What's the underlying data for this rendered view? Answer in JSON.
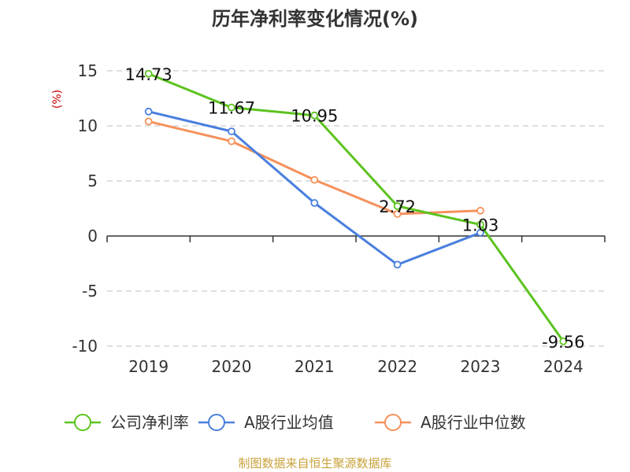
{
  "colors": {
    "series": [
      "#5cc31f",
      "#4a7fde",
      "#f5915b"
    ],
    "grid": "#cccccc",
    "axis": "#333333",
    "unit": "#cc0000",
    "source": "#c8a23a"
  },
  "chart_data": {
    "type": "line",
    "title": "历年净利率变化情况(%)",
    "ylabel": "(%)",
    "xlabel": "",
    "categories": [
      "2019",
      "2020",
      "2021",
      "2022",
      "2023",
      "2024"
    ],
    "ylim": [
      -10,
      15
    ],
    "yticks": [
      15,
      10,
      5,
      0,
      -5,
      -10
    ],
    "grid": true,
    "legend_position": "bottom",
    "series": [
      {
        "name": "公司净利率",
        "values": [
          14.73,
          11.67,
          10.95,
          2.72,
          1.03,
          -9.56
        ],
        "labels": [
          "14.73",
          "11.67",
          "10.95",
          "2.72",
          "1.03",
          "-9.56"
        ]
      },
      {
        "name": "A股行业均值",
        "values": [
          11.3,
          9.5,
          3.0,
          -2.6,
          0.3,
          null
        ]
      },
      {
        "name": "A股行业中位数",
        "values": [
          10.4,
          8.6,
          5.1,
          2.0,
          2.3,
          null
        ]
      }
    ]
  },
  "source": "制图数据来自恒生聚源数据库"
}
